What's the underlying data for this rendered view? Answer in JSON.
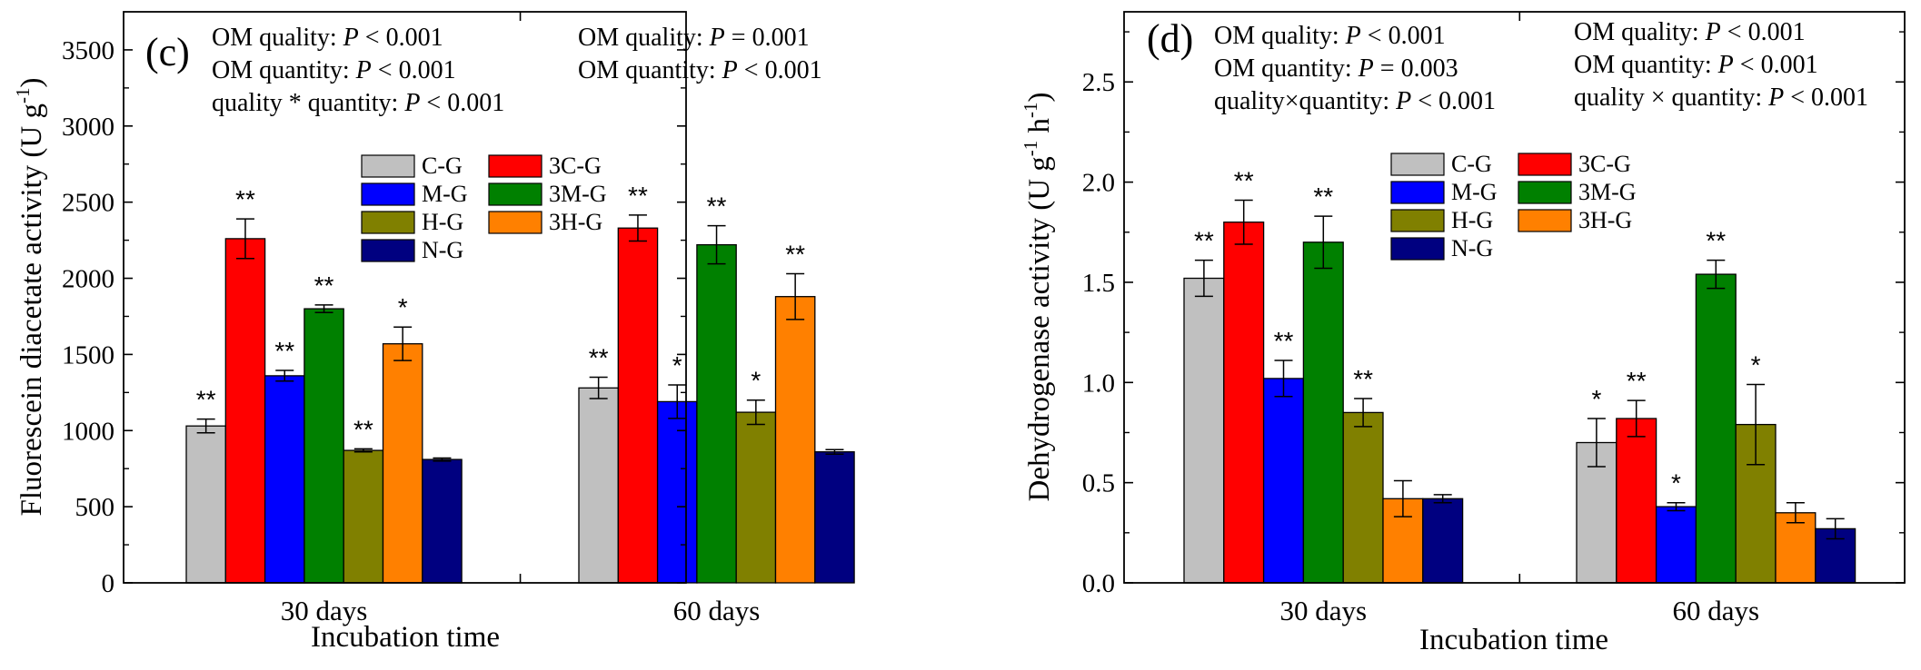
{
  "chart_data": [
    {
      "type": "bar",
      "panel_label": "(c)",
      "xlabel": "Incubation time",
      "ylabel": "Fluorescein diacetate activity (U g",
      "ylabel_sup": "-1",
      "ylabel_close": ")",
      "ylim": [
        0,
        3750
      ],
      "yticks": [
        "0",
        "500",
        "1000",
        "1500",
        "2000",
        "2500",
        "3000",
        "3500"
      ],
      "ytick_values": [
        0,
        500,
        1000,
        1500,
        2000,
        2500,
        3000,
        3500
      ],
      "categories": [
        "30 days",
        "60 days"
      ],
      "legend": {
        "placement": "upper-middle",
        "ncol": 2,
        "entries": [
          "C-G",
          "3C-G",
          "M-G",
          "3M-G",
          "H-G",
          "3H-G",
          "N-G"
        ]
      },
      "series": [
        {
          "name": "C-G",
          "color": "#c0c0c0",
          "values": [
            1030,
            1280
          ],
          "errors": [
            45,
            70
          ],
          "sig": [
            "**",
            "**"
          ]
        },
        {
          "name": "3C-G",
          "color": "#ff0000",
          "values": [
            2260,
            2330
          ],
          "errors": [
            130,
            85
          ],
          "sig": [
            "**",
            "**"
          ]
        },
        {
          "name": "M-G",
          "color": "#0000ff",
          "values": [
            1360,
            1190
          ],
          "errors": [
            35,
            110
          ],
          "sig": [
            "**",
            "*"
          ]
        },
        {
          "name": "3M-G",
          "color": "#008000",
          "values": [
            1800,
            2220
          ],
          "errors": [
            25,
            125
          ],
          "sig": [
            "**",
            "**"
          ]
        },
        {
          "name": "H-G",
          "color": "#808000",
          "values": [
            870,
            1120
          ],
          "errors": [
            10,
            80
          ],
          "sig": [
            "**",
            "*"
          ]
        },
        {
          "name": "3H-G",
          "color": "#ff8000",
          "values": [
            1570,
            1880
          ],
          "errors": [
            110,
            150
          ],
          "sig": [
            "*",
            "**"
          ]
        },
        {
          "name": "N-G",
          "color": "#000080",
          "values": [
            810,
            860
          ],
          "errors": [
            10,
            15
          ],
          "sig": [
            "",
            ""
          ]
        }
      ],
      "stats": [
        [
          [
            {
              "t": "OM quality: "
            },
            {
              "t": "P",
              "i": true
            },
            {
              "t": " < 0.001"
            }
          ],
          [
            {
              "t": "OM quantity: "
            },
            {
              "t": "P",
              "i": true
            },
            {
              "t": " < 0.001"
            }
          ],
          [
            {
              "t": "quality * quantity: "
            },
            {
              "t": "P",
              "i": true
            },
            {
              "t": " < 0.001"
            }
          ]
        ],
        [
          [
            {
              "t": "OM quality: "
            },
            {
              "t": "P",
              "i": true
            },
            {
              "t": " = 0.001"
            }
          ],
          [
            {
              "t": "OM quantity: "
            },
            {
              "t": "P",
              "i": true
            },
            {
              "t": " < 0.001"
            }
          ]
        ]
      ]
    },
    {
      "type": "bar",
      "panel_label": "(d)",
      "xlabel": "Incubation time",
      "ylabel": "Dehydrogenase activity (U g",
      "ylabel_sup": "-1",
      "ylabel_mid": " h",
      "ylabel_sup2": "-1",
      "ylabel_close": ")",
      "ylim": [
        0,
        2.85
      ],
      "yticks": [
        "0.0",
        "0.5",
        "1.0",
        "1.5",
        "2.0",
        "2.5"
      ],
      "ytick_values": [
        0,
        0.5,
        1.0,
        1.5,
        2.0,
        2.5
      ],
      "categories": [
        "30 days",
        "60 days"
      ],
      "legend": {
        "placement": "upper-middle",
        "ncol": 2,
        "entries": [
          "C-G",
          "3C-G",
          "M-G",
          "3M-G",
          "H-G",
          "3H-G",
          "N-G"
        ]
      },
      "series": [
        {
          "name": "C-G",
          "color": "#c0c0c0",
          "values": [
            1.52,
            0.7
          ],
          "errors": [
            0.09,
            0.12
          ],
          "sig": [
            "**",
            "*"
          ]
        },
        {
          "name": "3C-G",
          "color": "#ff0000",
          "values": [
            1.8,
            0.82
          ],
          "errors": [
            0.11,
            0.09
          ],
          "sig": [
            "**",
            "**"
          ]
        },
        {
          "name": "M-G",
          "color": "#0000ff",
          "values": [
            1.02,
            0.38
          ],
          "errors": [
            0.09,
            0.02
          ],
          "sig": [
            "**",
            "*"
          ]
        },
        {
          "name": "3M-G",
          "color": "#008000",
          "values": [
            1.7,
            1.54
          ],
          "errors": [
            0.13,
            0.07
          ],
          "sig": [
            "**",
            "**"
          ]
        },
        {
          "name": "H-G",
          "color": "#808000",
          "values": [
            0.85,
            0.79
          ],
          "errors": [
            0.07,
            0.2
          ],
          "sig": [
            "**",
            "*"
          ]
        },
        {
          "name": "3H-G",
          "color": "#ff8000",
          "values": [
            0.42,
            0.35
          ],
          "errors": [
            0.09,
            0.05
          ],
          "sig": [
            "",
            ""
          ]
        },
        {
          "name": "N-G",
          "color": "#000080",
          "values": [
            0.42,
            0.27
          ],
          "errors": [
            0.02,
            0.05
          ],
          "sig": [
            "",
            ""
          ]
        }
      ],
      "stats": [
        [
          [
            {
              "t": "OM quality: "
            },
            {
              "t": "P",
              "i": true
            },
            {
              "t": " < 0.001"
            }
          ],
          [
            {
              "t": "OM quantity: "
            },
            {
              "t": "P",
              "i": true
            },
            {
              "t": " = 0.003"
            }
          ],
          [
            {
              "t": "quality×quantity: "
            },
            {
              "t": "P",
              "i": true
            },
            {
              "t": " < 0.001"
            }
          ]
        ],
        [
          [
            {
              "t": "OM quality: "
            },
            {
              "t": "P",
              "i": true
            },
            {
              "t": " < 0.001"
            }
          ],
          [
            {
              "t": "OM quantity: "
            },
            {
              "t": "P",
              "i": true
            },
            {
              "t": " < 0.001"
            }
          ],
          [
            {
              "t": "quality × quantity: "
            },
            {
              "t": "P",
              "i": true
            },
            {
              "t": " < 0.001"
            }
          ]
        ]
      ]
    }
  ]
}
